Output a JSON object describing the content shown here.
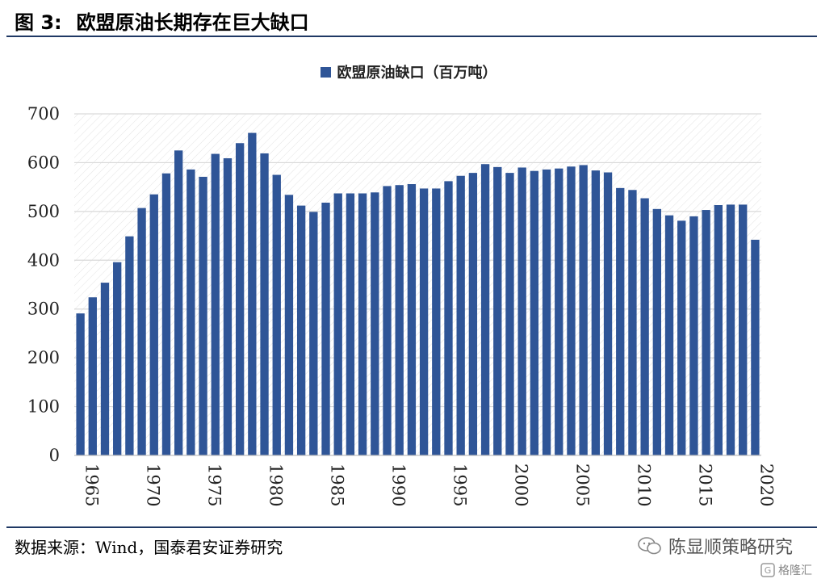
{
  "header": {
    "fig_no": "图 3:",
    "title": "欧盟原油长期存在巨大缺口"
  },
  "legend": {
    "label": "欧盟原油缺口（百万吨）"
  },
  "source": "数据来源：Wind，国泰君安证券研究",
  "watermark": {
    "text": "陈显顺策略研究",
    "brand": "格隆汇"
  },
  "colors": {
    "bar": "#2f5597",
    "rule": "#1f3864",
    "grid": "#d9d9d9"
  },
  "chart_data": {
    "type": "bar",
    "x_start": 1965,
    "x_end": 2020,
    "ylim": [
      0,
      700
    ],
    "yticks": [
      0,
      100,
      200,
      300,
      400,
      500,
      600,
      700
    ],
    "xticks": [
      1965,
      1970,
      1975,
      1980,
      1985,
      1990,
      1995,
      2000,
      2005,
      2010,
      2015,
      2020
    ],
    "series": [
      {
        "name": "欧盟原油缺口（百万吨）",
        "values": [
          291,
          324,
          354,
          396,
          449,
          507,
          535,
          578,
          625,
          586,
          571,
          618,
          609,
          640,
          661,
          619,
          575,
          534,
          512,
          499,
          518,
          537,
          537,
          537,
          539,
          552,
          554,
          556,
          547,
          547,
          562,
          573,
          579,
          597,
          591,
          579,
          590,
          583,
          586,
          588,
          592,
          595,
          584,
          580,
          548,
          544,
          527,
          505,
          492,
          481,
          490,
          503,
          513,
          514,
          514,
          442
        ]
      }
    ]
  }
}
